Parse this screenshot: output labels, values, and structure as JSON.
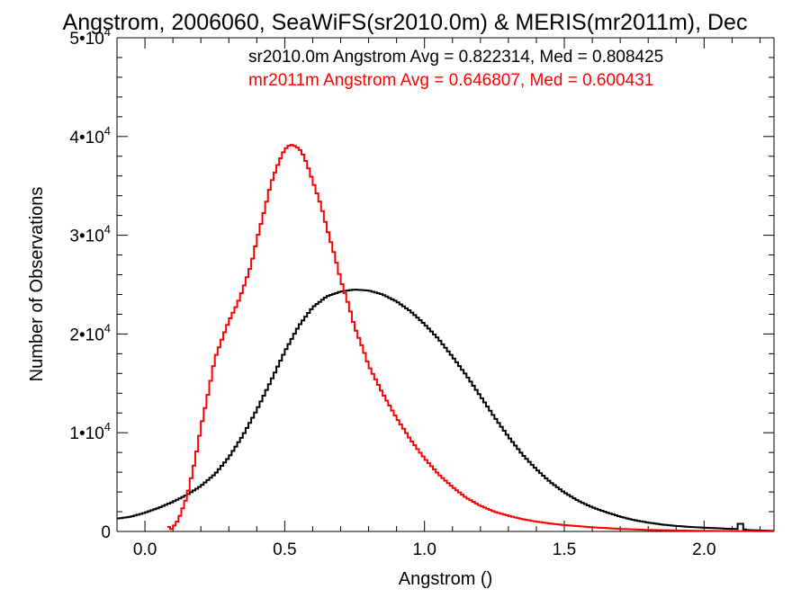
{
  "chart_data": {
    "type": "line",
    "title": "Angstrom, 2006060, SeaWiFS(sr2010.0m) & MERIS(mr2011m), Dec",
    "xlabel": "Angstrom ()",
    "ylabel": "Number of Observations",
    "xlim": [
      -0.1,
      2.25
    ],
    "ylim": [
      0,
      50000
    ],
    "x_ticks": [
      0.0,
      0.5,
      1.0,
      1.5,
      2.0
    ],
    "x_tick_labels": [
      "0.0",
      "0.5",
      "1.0",
      "1.5",
      "2.0"
    ],
    "y_ticks": [
      0,
      10000,
      20000,
      30000,
      40000,
      50000
    ],
    "y_tick_labels": [
      {
        "base": "0",
        "exp": ""
      },
      {
        "base": "1•10",
        "exp": "4"
      },
      {
        "base": "2•10",
        "exp": "4"
      },
      {
        "base": "3•10",
        "exp": "4"
      },
      {
        "base": "4•10",
        "exp": "4"
      },
      {
        "base": "5•10",
        "exp": "4"
      }
    ],
    "grid": false,
    "legend_position": "top-right",
    "legend": [
      {
        "text": "sr2010.0m Angstrom Avg = 0.822314, Med = 0.808425",
        "color": "#000000"
      },
      {
        "text": "mr2011m Angstrom Avg = 0.646807, Med = 0.600431",
        "color": "#ff0000"
      }
    ],
    "series": [
      {
        "name": "sr2010.0m",
        "color": "#000000",
        "x": [
          -0.1,
          -0.05,
          0.0,
          0.05,
          0.1,
          0.15,
          0.2,
          0.25,
          0.3,
          0.35,
          0.4,
          0.45,
          0.5,
          0.55,
          0.6,
          0.65,
          0.7,
          0.75,
          0.8,
          0.85,
          0.9,
          0.95,
          1.0,
          1.05,
          1.1,
          1.15,
          1.2,
          1.25,
          1.3,
          1.35,
          1.4,
          1.45,
          1.5,
          1.55,
          1.6,
          1.65,
          1.7,
          1.75,
          1.8,
          1.85,
          1.9,
          1.95,
          2.0,
          2.05,
          2.1,
          2.12,
          2.13,
          2.14,
          2.15,
          2.2,
          2.25
        ],
        "y": [
          1300,
          1500,
          1900,
          2400,
          3000,
          3700,
          4600,
          5800,
          7500,
          9700,
          12300,
          15200,
          18200,
          20800,
          22700,
          23800,
          24300,
          24500,
          24400,
          24000,
          23300,
          22300,
          21000,
          19500,
          17700,
          15800,
          13700,
          11600,
          9600,
          7800,
          6300,
          5000,
          3950,
          3100,
          2450,
          1950,
          1500,
          1150,
          900,
          700,
          560,
          460,
          380,
          320,
          260,
          250,
          1300,
          250,
          150,
          100,
          60
        ]
      },
      {
        "name": "mr2011m",
        "color": "#ff0000",
        "x": [
          0.08,
          0.09,
          0.1,
          0.12,
          0.15,
          0.18,
          0.2,
          0.23,
          0.25,
          0.28,
          0.3,
          0.33,
          0.35,
          0.38,
          0.4,
          0.43,
          0.45,
          0.48,
          0.5,
          0.52,
          0.54,
          0.56,
          0.58,
          0.6,
          0.63,
          0.65,
          0.68,
          0.7,
          0.73,
          0.75,
          0.78,
          0.8,
          0.85,
          0.9,
          0.95,
          1.0,
          1.05,
          1.1,
          1.15,
          1.2,
          1.25,
          1.3,
          1.35,
          1.4,
          1.45,
          1.5,
          1.6,
          1.7,
          1.8,
          1.9,
          2.0,
          2.1,
          2.2,
          2.25
        ],
        "y": [
          800,
          100,
          400,
          1200,
          3500,
          7300,
          10500,
          14500,
          17500,
          19800,
          21300,
          23000,
          24500,
          27000,
          29500,
          32800,
          35200,
          37500,
          38700,
          39200,
          39000,
          38500,
          37200,
          35500,
          33000,
          30800,
          27800,
          25500,
          22800,
          20700,
          18500,
          16800,
          14000,
          11500,
          9300,
          7400,
          5800,
          4500,
          3400,
          2600,
          2000,
          1600,
          1250,
          1000,
          800,
          650,
          420,
          260,
          160,
          100,
          60,
          40,
          25,
          20
        ]
      }
    ]
  }
}
